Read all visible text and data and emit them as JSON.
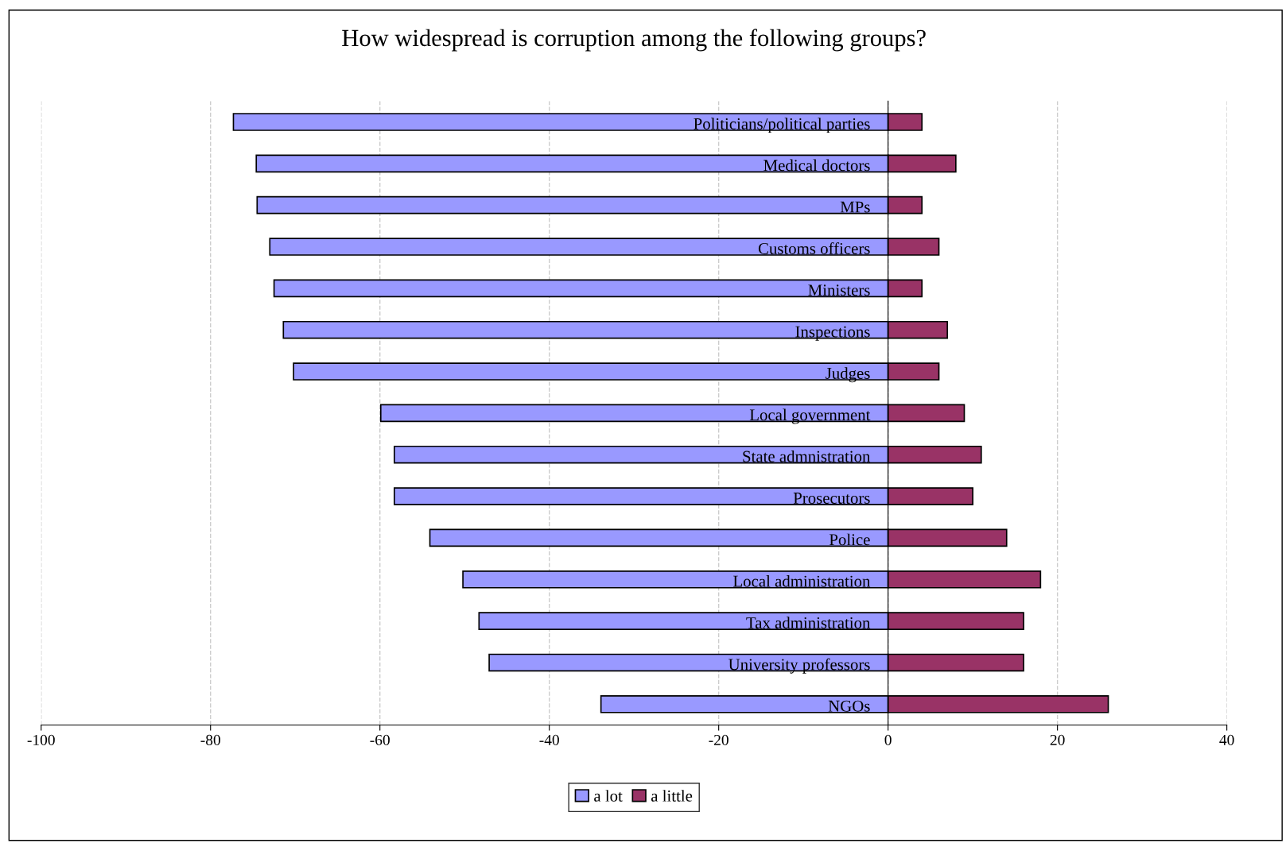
{
  "chart_data": {
    "type": "bar",
    "orientation": "horizontal",
    "title": "How widespread is corruption among the following groups?",
    "categories": [
      "Politicians/political parties",
      "Medical doctors",
      "MPs",
      "Customs officers",
      "Ministers",
      "Inspections",
      "Judges",
      "Local government",
      "State admnistration",
      "Prosecutors",
      "Police",
      "Local administration",
      "Tax administration",
      "University professors",
      "NGOs"
    ],
    "series": [
      {
        "name": "a lot",
        "color": "#9999ff",
        "values": [
          -77.3,
          -74.6,
          -74.5,
          -73.0,
          -72.5,
          -71.4,
          -70.2,
          -59.9,
          -58.3,
          -58.3,
          -54.1,
          -50.2,
          -48.3,
          -47.1,
          -33.9
        ]
      },
      {
        "name": "a little",
        "color": "#993366",
        "values": [
          4,
          8,
          4,
          6,
          4,
          7,
          6,
          9,
          11,
          10,
          14,
          18,
          16,
          16,
          26
        ]
      }
    ],
    "xlim": [
      -100,
      40
    ],
    "xticks": [
      -100,
      -80,
      -60,
      -40,
      -20,
      0,
      20,
      40
    ],
    "grid": "x",
    "legend": "bottom",
    "stacked": true
  }
}
